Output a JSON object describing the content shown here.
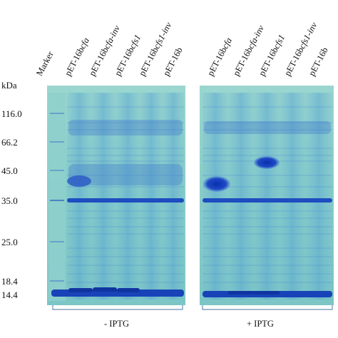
{
  "lanes": [
    {
      "label": "Marker",
      "italic_suffix": ""
    },
    {
      "label": "pET-16b",
      "italic_suffix": "cfa"
    },
    {
      "label": "pET-16b",
      "italic_suffix": "cfa-inv"
    },
    {
      "label": "pET-16b",
      "italic_suffix": "cfs1"
    },
    {
      "label": "pET-16b",
      "italic_suffix": "cfs1-inv"
    },
    {
      "label": "pET-16b",
      "italic_suffix": ""
    },
    {
      "label": "pET-16b",
      "italic_suffix": "cfa"
    },
    {
      "label": "pET-16b",
      "italic_suffix": "cfa-inv"
    },
    {
      "label": "pET-16b",
      "italic_suffix": "cfs1"
    },
    {
      "label": "pET-16b",
      "italic_suffix": "cfs1-inv"
    },
    {
      "label": "pET-16b",
      "italic_suffix": ""
    }
  ],
  "mw_unit": "kDa",
  "mw_markers": [
    "116.0",
    "66.2",
    "45.0",
    "35.0",
    "25.0",
    "18.4",
    "14.4"
  ],
  "groups": {
    "minus": "- IPTG",
    "plus": "+ IPTG"
  },
  "colors": {
    "gel_background": "#8fd0c7",
    "band_strong": "#1b47c0",
    "band_medium": "#3f7fd0",
    "band_faint": "#6fb2d6"
  }
}
